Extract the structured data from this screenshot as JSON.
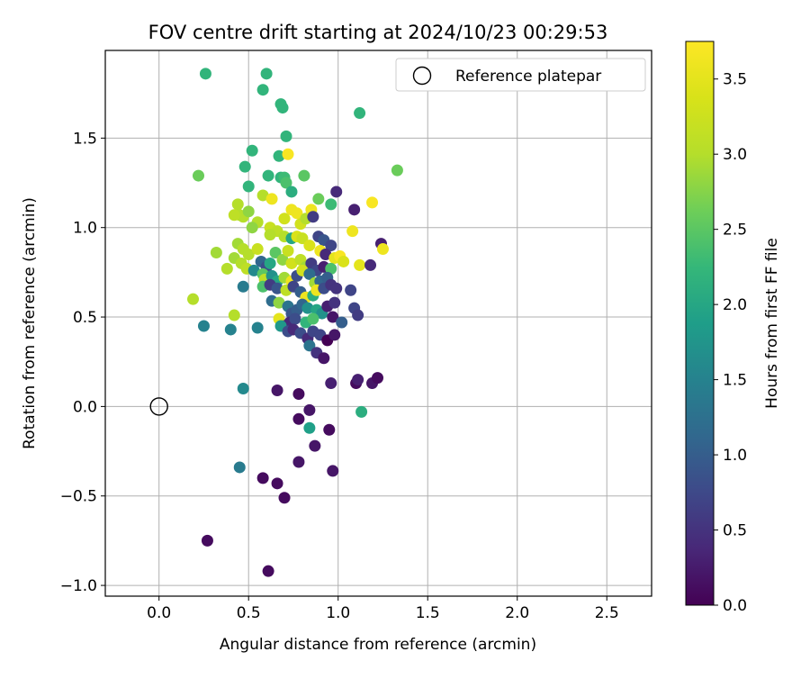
{
  "chart_data": {
    "type": "scatter",
    "title": "FOV centre drift starting at 2024/10/23 00:29:53",
    "xlabel": "Angular distance from reference (arcmin)",
    "ylabel": "Rotation from reference (arcmin)",
    "xlim": [
      -0.3,
      2.75
    ],
    "ylim": [
      -1.06,
      1.99
    ],
    "xticks": [
      0.0,
      0.5,
      1.0,
      1.5,
      2.0,
      2.5
    ],
    "xtick_labels": [
      "0.0",
      "0.5",
      "1.0",
      "1.5",
      "2.0",
      "2.5"
    ],
    "yticks": [
      -1.0,
      -0.5,
      0.0,
      0.5,
      1.0,
      1.5
    ],
    "ytick_labels": [
      "−1.0",
      "−0.5",
      "0.0",
      "0.5",
      "1.0",
      "1.5"
    ],
    "grid": true,
    "legend": {
      "placement": "top-right",
      "entries": [
        "Reference platepar"
      ]
    },
    "colorbar": {
      "label": "Hours from first FF file",
      "range": [
        0.0,
        3.75
      ],
      "ticks": [
        0.0,
        0.5,
        1.0,
        1.5,
        2.0,
        2.5,
        3.0,
        3.5
      ],
      "tick_labels": [
        "0.0",
        "0.5",
        "1.0",
        "1.5",
        "2.0",
        "2.5",
        "3.0",
        "3.5"
      ],
      "colormap": "viridis"
    },
    "reference_point": {
      "name": "Reference platepar",
      "x": 0.0,
      "y": 0.0
    },
    "points": [
      [
        0.26,
        1.86,
        2.2
      ],
      [
        0.6,
        1.86,
        2.2
      ],
      [
        0.58,
        1.77,
        2.2
      ],
      [
        0.68,
        1.69,
        2.2
      ],
      [
        0.69,
        1.67,
        2.2
      ],
      [
        1.12,
        1.64,
        2.2
      ],
      [
        0.71,
        1.51,
        2.2
      ],
      [
        1.33,
        1.32,
        2.6
      ],
      [
        0.22,
        1.29,
        2.6
      ],
      [
        0.52,
        1.43,
        2.2
      ],
      [
        0.67,
        1.4,
        2.2
      ],
      [
        0.48,
        1.34,
        2.2
      ],
      [
        0.61,
        1.29,
        2.2
      ],
      [
        0.68,
        1.28,
        2.2
      ],
      [
        0.7,
        1.28,
        2.3
      ],
      [
        0.81,
        1.29,
        2.5
      ],
      [
        0.72,
        1.41,
        3.7
      ],
      [
        0.5,
        1.23,
        2.2
      ],
      [
        0.71,
        1.25,
        2.4
      ],
      [
        0.74,
        1.2,
        2.1
      ],
      [
        0.89,
        1.16,
        2.6
      ],
      [
        0.96,
        1.13,
        2.3
      ],
      [
        0.99,
        1.2,
        0.4
      ],
      [
        1.09,
        1.1,
        0.3
      ],
      [
        1.19,
        1.14,
        3.7
      ],
      [
        0.58,
        1.18,
        3.0
      ],
      [
        0.63,
        1.16,
        3.6
      ],
      [
        0.44,
        1.13,
        3.0
      ],
      [
        0.45,
        1.07,
        3.0
      ],
      [
        0.47,
        1.06,
        3.0
      ],
      [
        0.5,
        1.09,
        2.8
      ],
      [
        0.55,
        1.03,
        3.0
      ],
      [
        0.62,
        1.0,
        3.2
      ],
      [
        0.66,
        0.98,
        3.1
      ],
      [
        0.7,
        1.05,
        3.3
      ],
      [
        0.74,
        1.1,
        3.6
      ],
      [
        0.77,
        1.08,
        3.6
      ],
      [
        0.79,
        1.02,
        3.3
      ],
      [
        0.82,
        1.05,
        3.0
      ],
      [
        0.85,
        1.1,
        3.6
      ],
      [
        0.86,
        1.06,
        0.6
      ],
      [
        0.42,
        1.07,
        3.1
      ],
      [
        0.52,
        1.0,
        2.8
      ],
      [
        0.62,
        0.96,
        3.0
      ],
      [
        0.7,
        0.95,
        3.0
      ],
      [
        0.74,
        0.94,
        2.0
      ],
      [
        0.77,
        0.95,
        3.4
      ],
      [
        0.8,
        0.94,
        3.2
      ],
      [
        0.84,
        0.9,
        3.4
      ],
      [
        0.89,
        0.95,
        0.7
      ],
      [
        0.92,
        0.93,
        0.9
      ],
      [
        0.96,
        0.9,
        0.7
      ],
      [
        1.08,
        0.98,
        3.6
      ],
      [
        1.24,
        0.91,
        0.3
      ],
      [
        1.25,
        0.88,
        3.6
      ],
      [
        0.9,
        0.87,
        3.6
      ],
      [
        0.93,
        0.85,
        0.4
      ],
      [
        0.98,
        0.83,
        3.5
      ],
      [
        1.01,
        0.84,
        3.7
      ],
      [
        1.03,
        0.81,
        3.4
      ],
      [
        1.12,
        0.79,
        3.5
      ],
      [
        1.18,
        0.79,
        0.4
      ],
      [
        0.32,
        0.86,
        2.9
      ],
      [
        0.44,
        0.91,
        2.9
      ],
      [
        0.47,
        0.88,
        3.0
      ],
      [
        0.5,
        0.85,
        3.0
      ],
      [
        0.55,
        0.88,
        3.2
      ],
      [
        0.42,
        0.83,
        2.9
      ],
      [
        0.46,
        0.8,
        3.0
      ],
      [
        0.49,
        0.77,
        3.1
      ],
      [
        0.38,
        0.77,
        3.0
      ],
      [
        0.57,
        0.81,
        1.1
      ],
      [
        0.6,
        0.78,
        0.8
      ],
      [
        0.53,
        0.76,
        1.6
      ],
      [
        0.58,
        0.74,
        2.5
      ],
      [
        0.62,
        0.8,
        2.0
      ],
      [
        0.65,
        0.86,
        2.5
      ],
      [
        0.69,
        0.82,
        2.8
      ],
      [
        0.72,
        0.87,
        3.2
      ],
      [
        0.74,
        0.8,
        3.3
      ],
      [
        0.79,
        0.82,
        3.1
      ],
      [
        0.82,
        0.78,
        2.9
      ],
      [
        0.85,
        0.8,
        0.6
      ],
      [
        0.88,
        0.76,
        0.7
      ],
      [
        0.92,
        0.78,
        0.3
      ],
      [
        0.96,
        0.77,
        2.4
      ],
      [
        0.59,
        0.71,
        3.1
      ],
      [
        0.63,
        0.73,
        1.7
      ],
      [
        0.66,
        0.7,
        2.0
      ],
      [
        0.7,
        0.72,
        2.9
      ],
      [
        0.74,
        0.7,
        3.6
      ],
      [
        0.77,
        0.73,
        0.8
      ],
      [
        0.8,
        0.76,
        3.3
      ],
      [
        0.84,
        0.74,
        1.2
      ],
      [
        0.87,
        0.69,
        2.9
      ],
      [
        0.9,
        0.7,
        1.1
      ],
      [
        0.94,
        0.72,
        1.0
      ],
      [
        0.47,
        0.67,
        1.4
      ],
      [
        0.58,
        0.67,
        2.4
      ],
      [
        0.62,
        0.68,
        0.6
      ],
      [
        0.66,
        0.66,
        0.9
      ],
      [
        0.71,
        0.65,
        3.1
      ],
      [
        0.75,
        0.67,
        0.7
      ],
      [
        0.79,
        0.64,
        1.0
      ],
      [
        0.82,
        0.61,
        3.6
      ],
      [
        0.86,
        0.62,
        2.1
      ],
      [
        0.88,
        0.65,
        3.6
      ],
      [
        0.92,
        0.66,
        0.8
      ],
      [
        0.96,
        0.68,
        0.5
      ],
      [
        0.99,
        0.66,
        0.5
      ],
      [
        1.07,
        0.65,
        0.7
      ],
      [
        0.19,
        0.6,
        3.0
      ],
      [
        0.63,
        0.59,
        1.2
      ],
      [
        0.67,
        0.58,
        2.8
      ],
      [
        0.72,
        0.56,
        1.3
      ],
      [
        0.74,
        0.52,
        0.9
      ],
      [
        0.77,
        0.54,
        1.0
      ],
      [
        0.8,
        0.57,
        1.1
      ],
      [
        0.83,
        0.55,
        1.7
      ],
      [
        0.88,
        0.54,
        2.0
      ],
      [
        0.91,
        0.52,
        1.7
      ],
      [
        0.94,
        0.56,
        0.3
      ],
      [
        0.98,
        0.58,
        0.5
      ],
      [
        1.09,
        0.55,
        0.7
      ],
      [
        1.11,
        0.51,
        0.6
      ],
      [
        0.67,
        0.49,
        3.5
      ],
      [
        0.7,
        0.45,
        0.7
      ],
      [
        0.73,
        0.47,
        0.4
      ],
      [
        0.76,
        0.49,
        0.8
      ],
      [
        0.82,
        0.47,
        2.2
      ],
      [
        0.86,
        0.49,
        2.4
      ],
      [
        0.97,
        0.5,
        0.2
      ],
      [
        1.02,
        0.47,
        1.0
      ],
      [
        0.42,
        0.51,
        3.0
      ],
      [
        0.25,
        0.45,
        1.5
      ],
      [
        0.4,
        0.43,
        1.5
      ],
      [
        0.55,
        0.44,
        1.5
      ],
      [
        0.68,
        0.45,
        1.8
      ],
      [
        0.72,
        0.42,
        0.8
      ],
      [
        0.75,
        0.43,
        0.4
      ],
      [
        0.79,
        0.41,
        0.8
      ],
      [
        0.83,
        0.38,
        0.4
      ],
      [
        0.86,
        0.42,
        0.7
      ],
      [
        0.9,
        0.4,
        0.7
      ],
      [
        0.94,
        0.37,
        0.0
      ],
      [
        0.98,
        0.4,
        0.2
      ],
      [
        0.84,
        0.34,
        1.3
      ],
      [
        0.88,
        0.3,
        0.5
      ],
      [
        0.92,
        0.27,
        0.2
      ],
      [
        0.96,
        0.13,
        0.3
      ],
      [
        1.1,
        0.13,
        0.1
      ],
      [
        1.11,
        0.15,
        0.3
      ],
      [
        1.19,
        0.13,
        0.2
      ],
      [
        1.22,
        0.16,
        0.1
      ],
      [
        0.66,
        0.09,
        0.2
      ],
      [
        0.78,
        0.07,
        0.1
      ],
      [
        0.47,
        0.1,
        1.6
      ],
      [
        0.84,
        -0.02,
        0.2
      ],
      [
        1.13,
        -0.03,
        2.1
      ],
      [
        0.78,
        -0.07,
        0.1
      ],
      [
        0.84,
        -0.12,
        1.9
      ],
      [
        0.95,
        -0.13,
        0.1
      ],
      [
        0.87,
        -0.22,
        0.2
      ],
      [
        0.78,
        -0.31,
        0.2
      ],
      [
        0.97,
        -0.36,
        0.2
      ],
      [
        0.45,
        -0.34,
        1.4
      ],
      [
        0.58,
        -0.4,
        0.1
      ],
      [
        0.66,
        -0.43,
        0.1
      ],
      [
        0.7,
        -0.51,
        0.1
      ],
      [
        0.27,
        -0.75,
        0.1
      ],
      [
        0.61,
        -0.92,
        0.1
      ]
    ]
  }
}
